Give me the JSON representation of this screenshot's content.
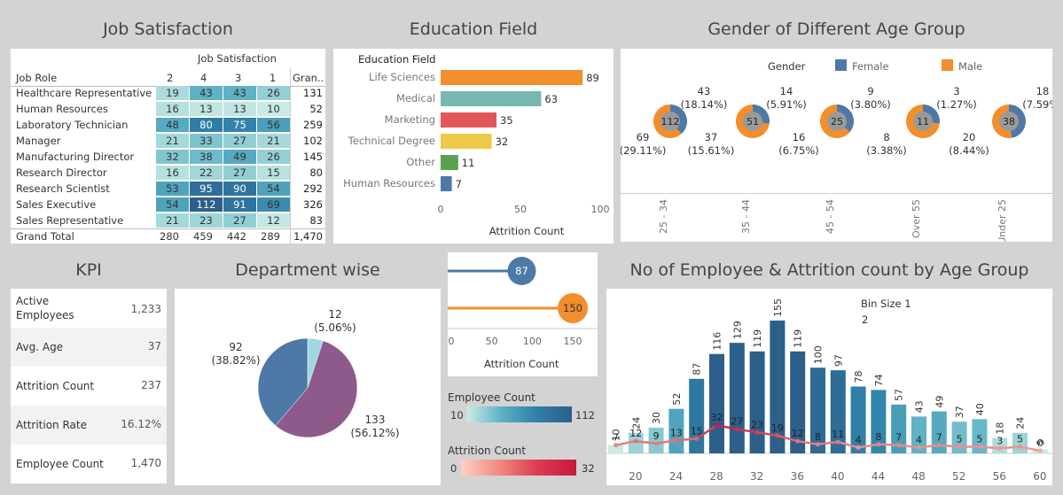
{
  "titles": {
    "job_satisfaction": "Job Satisfaction",
    "education_field": "Education Field",
    "gender_age": "Gender of Different Age Group",
    "kpi": "KPI",
    "department": "Department wise",
    "age_group": "No of Employee & Attrition count by Age Group"
  },
  "job_satisfaction": {
    "header": "Job Satisfaction",
    "role_header": "Job Role",
    "columns": [
      "2",
      "4",
      "3",
      "1"
    ],
    "total_header": "Gran..",
    "rows": [
      {
        "role": "Healthcare Representative",
        "values": [
          19,
          43,
          43,
          26
        ],
        "total": "131"
      },
      {
        "role": "Human Resources",
        "values": [
          16,
          13,
          13,
          10
        ],
        "total": "52"
      },
      {
        "role": "Laboratory Technician",
        "values": [
          48,
          80,
          75,
          56
        ],
        "total": "259"
      },
      {
        "role": "Manager",
        "values": [
          21,
          33,
          27,
          21
        ],
        "total": "102"
      },
      {
        "role": "Manufacturing Director",
        "values": [
          32,
          38,
          49,
          26
        ],
        "total": "145"
      },
      {
        "role": "Research Director",
        "values": [
          16,
          22,
          27,
          15
        ],
        "total": "80"
      },
      {
        "role": "Research Scientist",
        "values": [
          53,
          95,
          90,
          54
        ],
        "total": "292"
      },
      {
        "role": "Sales Executive",
        "values": [
          54,
          112,
          91,
          69
        ],
        "total": "326"
      },
      {
        "role": "Sales Representative",
        "values": [
          21,
          23,
          27,
          12
        ],
        "total": "83"
      }
    ],
    "grand_total_label": "Grand Total",
    "grand_totals": [
      "280",
      "459",
      "442",
      "289",
      "1,470"
    ]
  },
  "education_field": {
    "header": "Education Field",
    "xlabel": "Attrition Count",
    "ticks": [
      "0",
      "50",
      "100"
    ],
    "items": [
      {
        "label": "Life Sciences",
        "value": 89,
        "color": "#f28e2b"
      },
      {
        "label": "Medical",
        "value": 63,
        "color": "#76b7b2"
      },
      {
        "label": "Marketing",
        "value": 35,
        "color": "#e15759"
      },
      {
        "label": "Technical Degree",
        "value": 32,
        "color": "#edc948"
      },
      {
        "label": "Other",
        "value": 11,
        "color": "#59a14f"
      },
      {
        "label": "Human Resources",
        "value": 7,
        "color": "#4e79a7"
      }
    ]
  },
  "gender_age": {
    "legend_title": "Gender",
    "female_label": "Female",
    "male_label": "Male",
    "female_color": "#4e79a7",
    "male_color": "#f28e2b",
    "groups": [
      {
        "axis": "25 - 34",
        "total": "112",
        "female": 43,
        "female_label": "43",
        "female_pct": "(18.14%)",
        "male": 69,
        "male_label": "69",
        "male_pct": "(29.11%)"
      },
      {
        "axis": "35 - 44",
        "total": "51",
        "female": 14,
        "female_label": "14",
        "female_pct": "(5.91%)",
        "male": 37,
        "male_label": "37",
        "male_pct": "(15.61%)"
      },
      {
        "axis": "45 - 54",
        "total": "25",
        "female": 9,
        "female_label": "9",
        "female_pct": "(3.80%)",
        "male": 16,
        "male_label": "16",
        "male_pct": "(6.75%)"
      },
      {
        "axis": "Over 55",
        "total": "11",
        "female": 3,
        "female_label": "3",
        "female_pct": "(1.27%)",
        "male": 8,
        "male_label": "8",
        "male_pct": "(3.38%)"
      },
      {
        "axis": "Under 25",
        "total": "38",
        "female": 18,
        "female_label": "18",
        "female_pct": "(7.59%)",
        "male": 20,
        "male_label": "20",
        "male_pct": "(8.44%)"
      }
    ]
  },
  "kpi": {
    "items": [
      {
        "label": "Active\nEmployees",
        "value": "1,233"
      },
      {
        "label": "Avg. Age",
        "value": "37"
      },
      {
        "label": "Attrition Count",
        "value": "237"
      },
      {
        "label": "Attrition Rate",
        "value": "16.12%"
      },
      {
        "label": "Employee Count",
        "value": "1,470"
      }
    ]
  },
  "department": {
    "slices": [
      {
        "value": 12,
        "label": "12",
        "pct": "(5.06%)",
        "color": "#a0d8e0"
      },
      {
        "value": 133,
        "label": "133",
        "pct": "(56.12%)",
        "color": "#8e5a8c"
      },
      {
        "value": 92,
        "label": "92",
        "pct": "(38.82%)",
        "color": "#4e79a7"
      }
    ]
  },
  "gender_attrition": {
    "xlabel": "Attrition Count",
    "ticks": [
      "0",
      "50",
      "100",
      "150"
    ],
    "items": [
      {
        "value": 87,
        "label": "87",
        "color": "#4e79a7"
      },
      {
        "value": 150,
        "label": "150",
        "color": "#f28e2b"
      }
    ]
  },
  "legends": {
    "employee_count_title": "Employee Count",
    "employee_min": "10",
    "employee_max": "112",
    "attrition_count_title": "Attrition Count",
    "attrition_min": "0",
    "attrition_max": "32"
  },
  "age_chart": {
    "bin_label": "Bin Size 1",
    "bin_value": "2",
    "x_ticks": [
      "20",
      "24",
      "28",
      "32",
      "36",
      "40",
      "44",
      "48",
      "52",
      "56",
      "60"
    ],
    "bars": [
      10,
      24,
      30,
      52,
      87,
      116,
      129,
      119,
      155,
      119,
      100,
      97,
      78,
      74,
      57,
      43,
      49,
      37,
      40,
      18,
      24,
      5
    ],
    "bar_labels": [
      "10",
      "24",
      "30",
      "52",
      "87",
      "116",
      "129",
      "119",
      "155",
      "119",
      "100",
      "97",
      "78",
      "74",
      "57",
      "43",
      "49",
      "37",
      "40",
      "18",
      "24",
      "5"
    ],
    "attrition": [
      7,
      12,
      9,
      13,
      15,
      32,
      27,
      23,
      19,
      12,
      8,
      11,
      4,
      8,
      7,
      4,
      7,
      5,
      5,
      3,
      5,
      0
    ],
    "attrition_labels": [
      "7",
      "12",
      "9",
      "13",
      "15",
      "32",
      "27",
      "23",
      "19",
      "12",
      "8",
      "11",
      "4",
      "8",
      "7",
      "4",
      "7",
      "5",
      "5",
      "3",
      "5",
      "0"
    ]
  }
}
